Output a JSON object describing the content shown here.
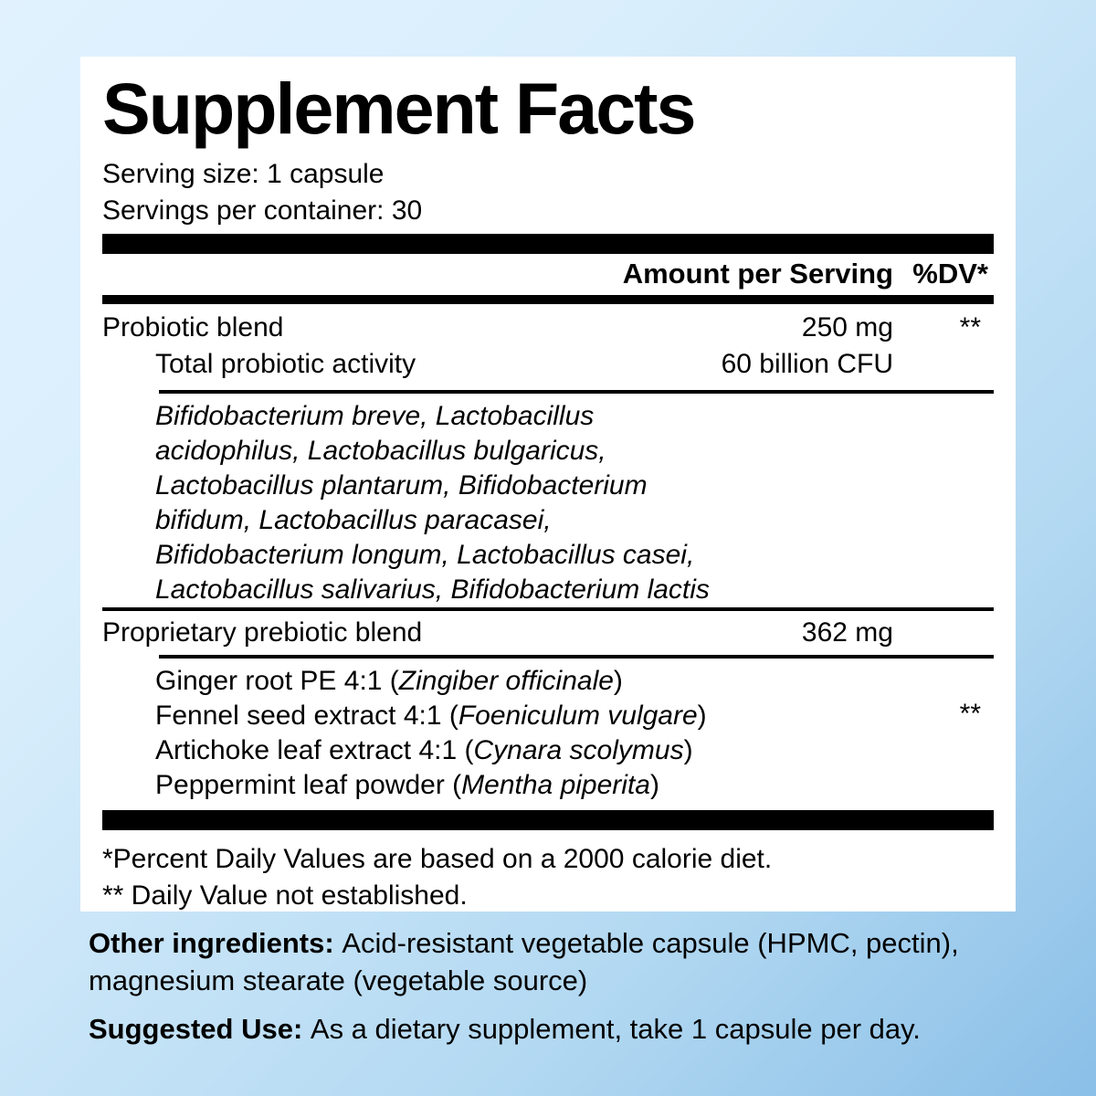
{
  "colors": {
    "background_top_left": "#daeffd",
    "background_bottom_right": "#8bc1e8",
    "panel": "#ffffff",
    "text": "#000000"
  },
  "panel": {
    "title": "Supplement Facts",
    "serving_size": "Serving size: 1 capsule",
    "servings_per_container": "Servings per container: 30",
    "columns": {
      "amount": "Amount per Serving",
      "dv": "%DV*"
    },
    "probiotic": {
      "name": "Probiotic blend",
      "amount": "250 mg",
      "dv": "**",
      "sub_name": "Total probiotic activity",
      "sub_amount": "60 billion CFU",
      "species_lines": [
        "Bifidobacterium breve, Lactobacillus",
        "acidophilus, Lactobacillus bulgaricus,",
        "Lactobacillus plantarum, Bifidobacterium",
        "bifidum, Lactobacillus paracasei,",
        "Bifidobacterium longum, Lactobacillus casei,",
        "Lactobacillus salivarius, Bifidobacterium lactis"
      ]
    },
    "prebiotic": {
      "name": "Proprietary prebiotic blend",
      "amount": "362 mg",
      "dv": "**",
      "ingredients": [
        {
          "pre": "Ginger root PE 4:1 (",
          "latin": "Zingiber officinale",
          "post": ")"
        },
        {
          "pre": "Fennel seed extract 4:1 (",
          "latin": "Foeniculum vulgare",
          "post": ")"
        },
        {
          "pre": "Artichoke leaf extract 4:1 (",
          "latin": "Cynara scolymus",
          "post": ")"
        },
        {
          "pre": "Peppermint leaf powder (",
          "latin": "Mentha piperita",
          "post": ")"
        }
      ]
    },
    "footnotes": [
      "*Percent Daily Values are based on a 2000 calorie diet.",
      "** Daily Value not established."
    ]
  },
  "footer": {
    "other_ingredients": {
      "label": "Other ingredients: ",
      "text": "Acid-resistant vegetable capsule (HPMC, pectin), magnesium stearate (vegetable source)"
    },
    "suggested_use": {
      "label": "Suggested Use: ",
      "text": "As a dietary supplement, take 1 capsule per day."
    }
  }
}
